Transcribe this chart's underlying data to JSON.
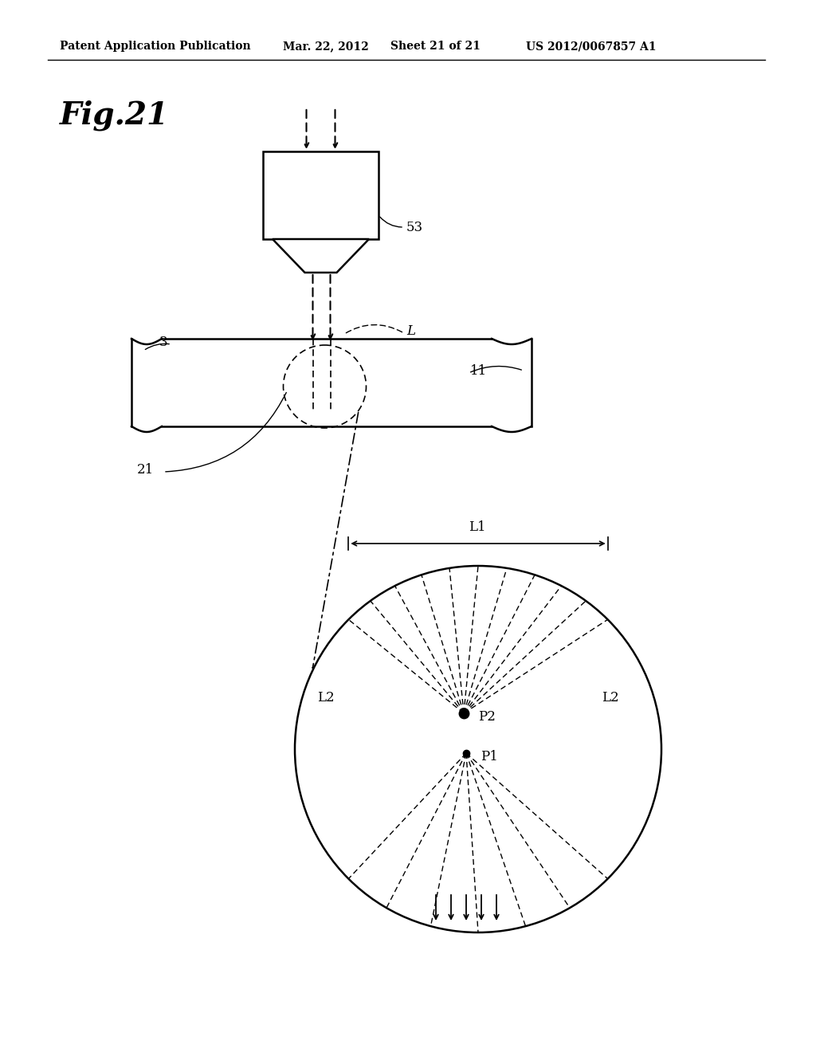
{
  "bg_color": "#ffffff",
  "header_left": "Patent Application Publication",
  "header_mid1": "Mar. 22, 2012",
  "header_mid2": "Sheet 21 of 21",
  "header_right": "US 2012/0067857 A1",
  "fig_label": "Fig.21",
  "label_53": "53",
  "label_L": "L",
  "label_3": "3",
  "label_11": "11",
  "label_21": "21",
  "label_L1": "L1",
  "label_L2": "L2",
  "label_P2": "P2",
  "label_P1": "P1",
  "line_color": "#000000"
}
